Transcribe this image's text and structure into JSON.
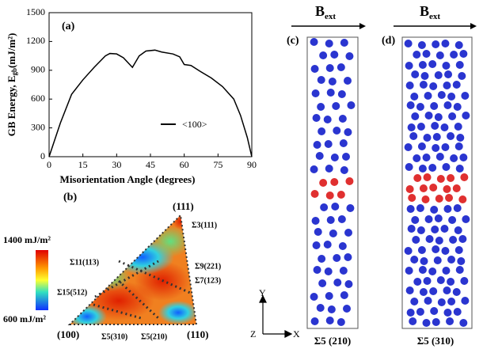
{
  "chart_data": {
    "type": "line",
    "panel_label": "(a)",
    "ylabel": [
      "GB Energy, E",
      "gb",
      "(mJ/m²)"
    ],
    "xlabel": "Misorientation Angle (degrees)",
    "x": [
      0,
      5,
      10,
      15,
      20,
      25,
      27,
      30,
      33,
      37,
      40,
      43,
      47,
      50,
      55,
      58,
      60,
      63,
      67,
      72,
      77,
      82,
      85,
      88,
      90
    ],
    "series": [
      {
        "name": "<100>",
        "color": "#000000",
        "values": [
          0,
          350,
          650,
          800,
          930,
          1050,
          1075,
          1070,
          1030,
          930,
          1050,
          1100,
          1110,
          1090,
          1070,
          1040,
          960,
          950,
          890,
          820,
          730,
          600,
          430,
          200,
          0
        ]
      }
    ],
    "xlim": [
      0,
      90
    ],
    "xticks": [
      0,
      15,
      30,
      45,
      60,
      75,
      90
    ],
    "ylim": [
      0,
      1500
    ],
    "yticks": [
      0,
      300,
      600,
      900,
      1200,
      1500
    ]
  },
  "panel_b": {
    "label": "(b)",
    "colorbar_max": "1400 mJ/m²",
    "colorbar_min": "600 mJ/m²",
    "corners": [
      "(111)",
      "(100)",
      "(110)"
    ],
    "boundaries": [
      "Σ3(111)",
      "Σ11(113)",
      "Σ9(221)",
      "Σ7(123)",
      "Σ15(512)",
      "Σ5(310)",
      "Σ5(210)"
    ]
  },
  "panel_c": {
    "label": "(c)",
    "field": [
      "B",
      "ext"
    ],
    "caption": "Σ5 (210)"
  },
  "panel_d": {
    "label": "(d)",
    "field": [
      "B",
      "ext"
    ],
    "caption": "Σ5 (310)"
  },
  "axes_icon": [
    "Y",
    "Z",
    "X"
  ]
}
